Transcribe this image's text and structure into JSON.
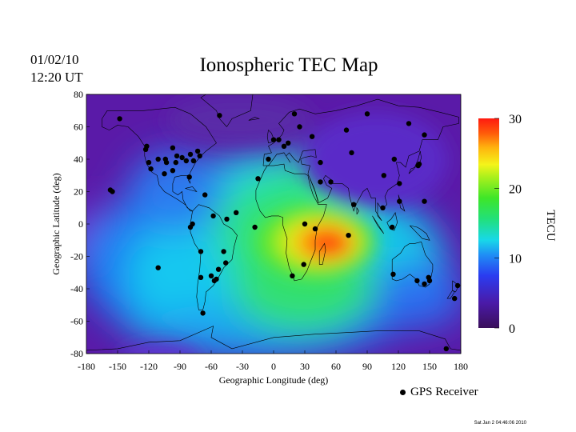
{
  "date": "01/02/10",
  "time": "12:20 UT",
  "title": "Ionospheric TEC Map",
  "x_axis": {
    "label": "Geographic Longitude (deg)",
    "ticks": [
      "-180",
      "-150",
      "-120",
      "-90",
      "-60",
      "-30",
      "0",
      "30",
      "60",
      "90",
      "120",
      "150",
      "180"
    ]
  },
  "y_axis": {
    "label": "Geographic Latitude (deg)",
    "ticks": [
      "80",
      "60",
      "40",
      "20",
      "0",
      "-20",
      "-40",
      "-60",
      "-80"
    ]
  },
  "colorbar": {
    "label": "TECU",
    "ticks": [
      "30",
      "20",
      "10",
      "0"
    ],
    "min": 0,
    "max": 30
  },
  "legend": {
    "receiver_label": "GPS Receiver"
  },
  "stamp": "Sat Jan  2 04:46:06 2010",
  "map": {
    "xlim": [
      -180,
      180
    ],
    "ylim": [
      -80,
      80
    ],
    "tec_peak": {
      "lon": 45,
      "lat": -10,
      "value": 30
    },
    "receivers": [
      [
        -148,
        65
      ],
      [
        -122,
        48
      ],
      [
        -123,
        46
      ],
      [
        -120,
        38
      ],
      [
        -118,
        34
      ],
      [
        -111,
        40
      ],
      [
        -104,
        40
      ],
      [
        -97,
        33
      ],
      [
        -97,
        47
      ],
      [
        -94,
        38
      ],
      [
        -93,
        42
      ],
      [
        -88,
        41
      ],
      [
        -84,
        39
      ],
      [
        -81,
        29
      ],
      [
        -80,
        43
      ],
      [
        -77,
        39
      ],
      [
        -71,
        42
      ],
      [
        -73,
        45
      ],
      [
        -105,
        31
      ],
      [
        -103,
        38
      ],
      [
        -66,
        18
      ],
      [
        -157,
        21
      ],
      [
        -155,
        20
      ],
      [
        -52,
        67
      ],
      [
        -36,
        7
      ],
      [
        -45,
        3
      ],
      [
        -78,
        0
      ],
      [
        -80,
        -2
      ],
      [
        -58,
        5
      ],
      [
        -70,
        -17
      ],
      [
        -70,
        -33
      ],
      [
        -60,
        -32
      ],
      [
        -57,
        -35
      ],
      [
        -55,
        -34
      ],
      [
        -48,
        -17
      ],
      [
        -53,
        -28
      ],
      [
        -46,
        -24
      ],
      [
        -111,
        -27
      ],
      [
        -68,
        -55
      ],
      [
        20,
        68
      ],
      [
        25,
        60
      ],
      [
        0,
        52
      ],
      [
        5,
        52
      ],
      [
        10,
        48
      ],
      [
        -15,
        28
      ],
      [
        14,
        50
      ],
      [
        -5,
        40
      ],
      [
        37,
        54
      ],
      [
        70,
        58
      ],
      [
        90,
        68
      ],
      [
        130,
        62
      ],
      [
        145,
        55
      ],
      [
        75,
        44
      ],
      [
        45,
        38
      ],
      [
        106,
        30
      ],
      [
        121,
        25
      ],
      [
        116,
        40
      ],
      [
        139,
        36
      ],
      [
        140,
        37
      ],
      [
        145,
        14
      ],
      [
        121,
        14
      ],
      [
        114,
        -2
      ],
      [
        105,
        10
      ],
      [
        77,
        12
      ],
      [
        55,
        26
      ],
      [
        45,
        26
      ],
      [
        -18,
        -2
      ],
      [
        30,
        0
      ],
      [
        40,
        -3
      ],
      [
        72,
        -7
      ],
      [
        29,
        -25
      ],
      [
        18,
        -32
      ],
      [
        115,
        -31
      ],
      [
        138,
        -35
      ],
      [
        145,
        -37
      ],
      [
        149,
        -33
      ],
      [
        150,
        -35
      ],
      [
        177,
        -38
      ],
      [
        174,
        -46
      ],
      [
        166,
        -77
      ]
    ]
  }
}
